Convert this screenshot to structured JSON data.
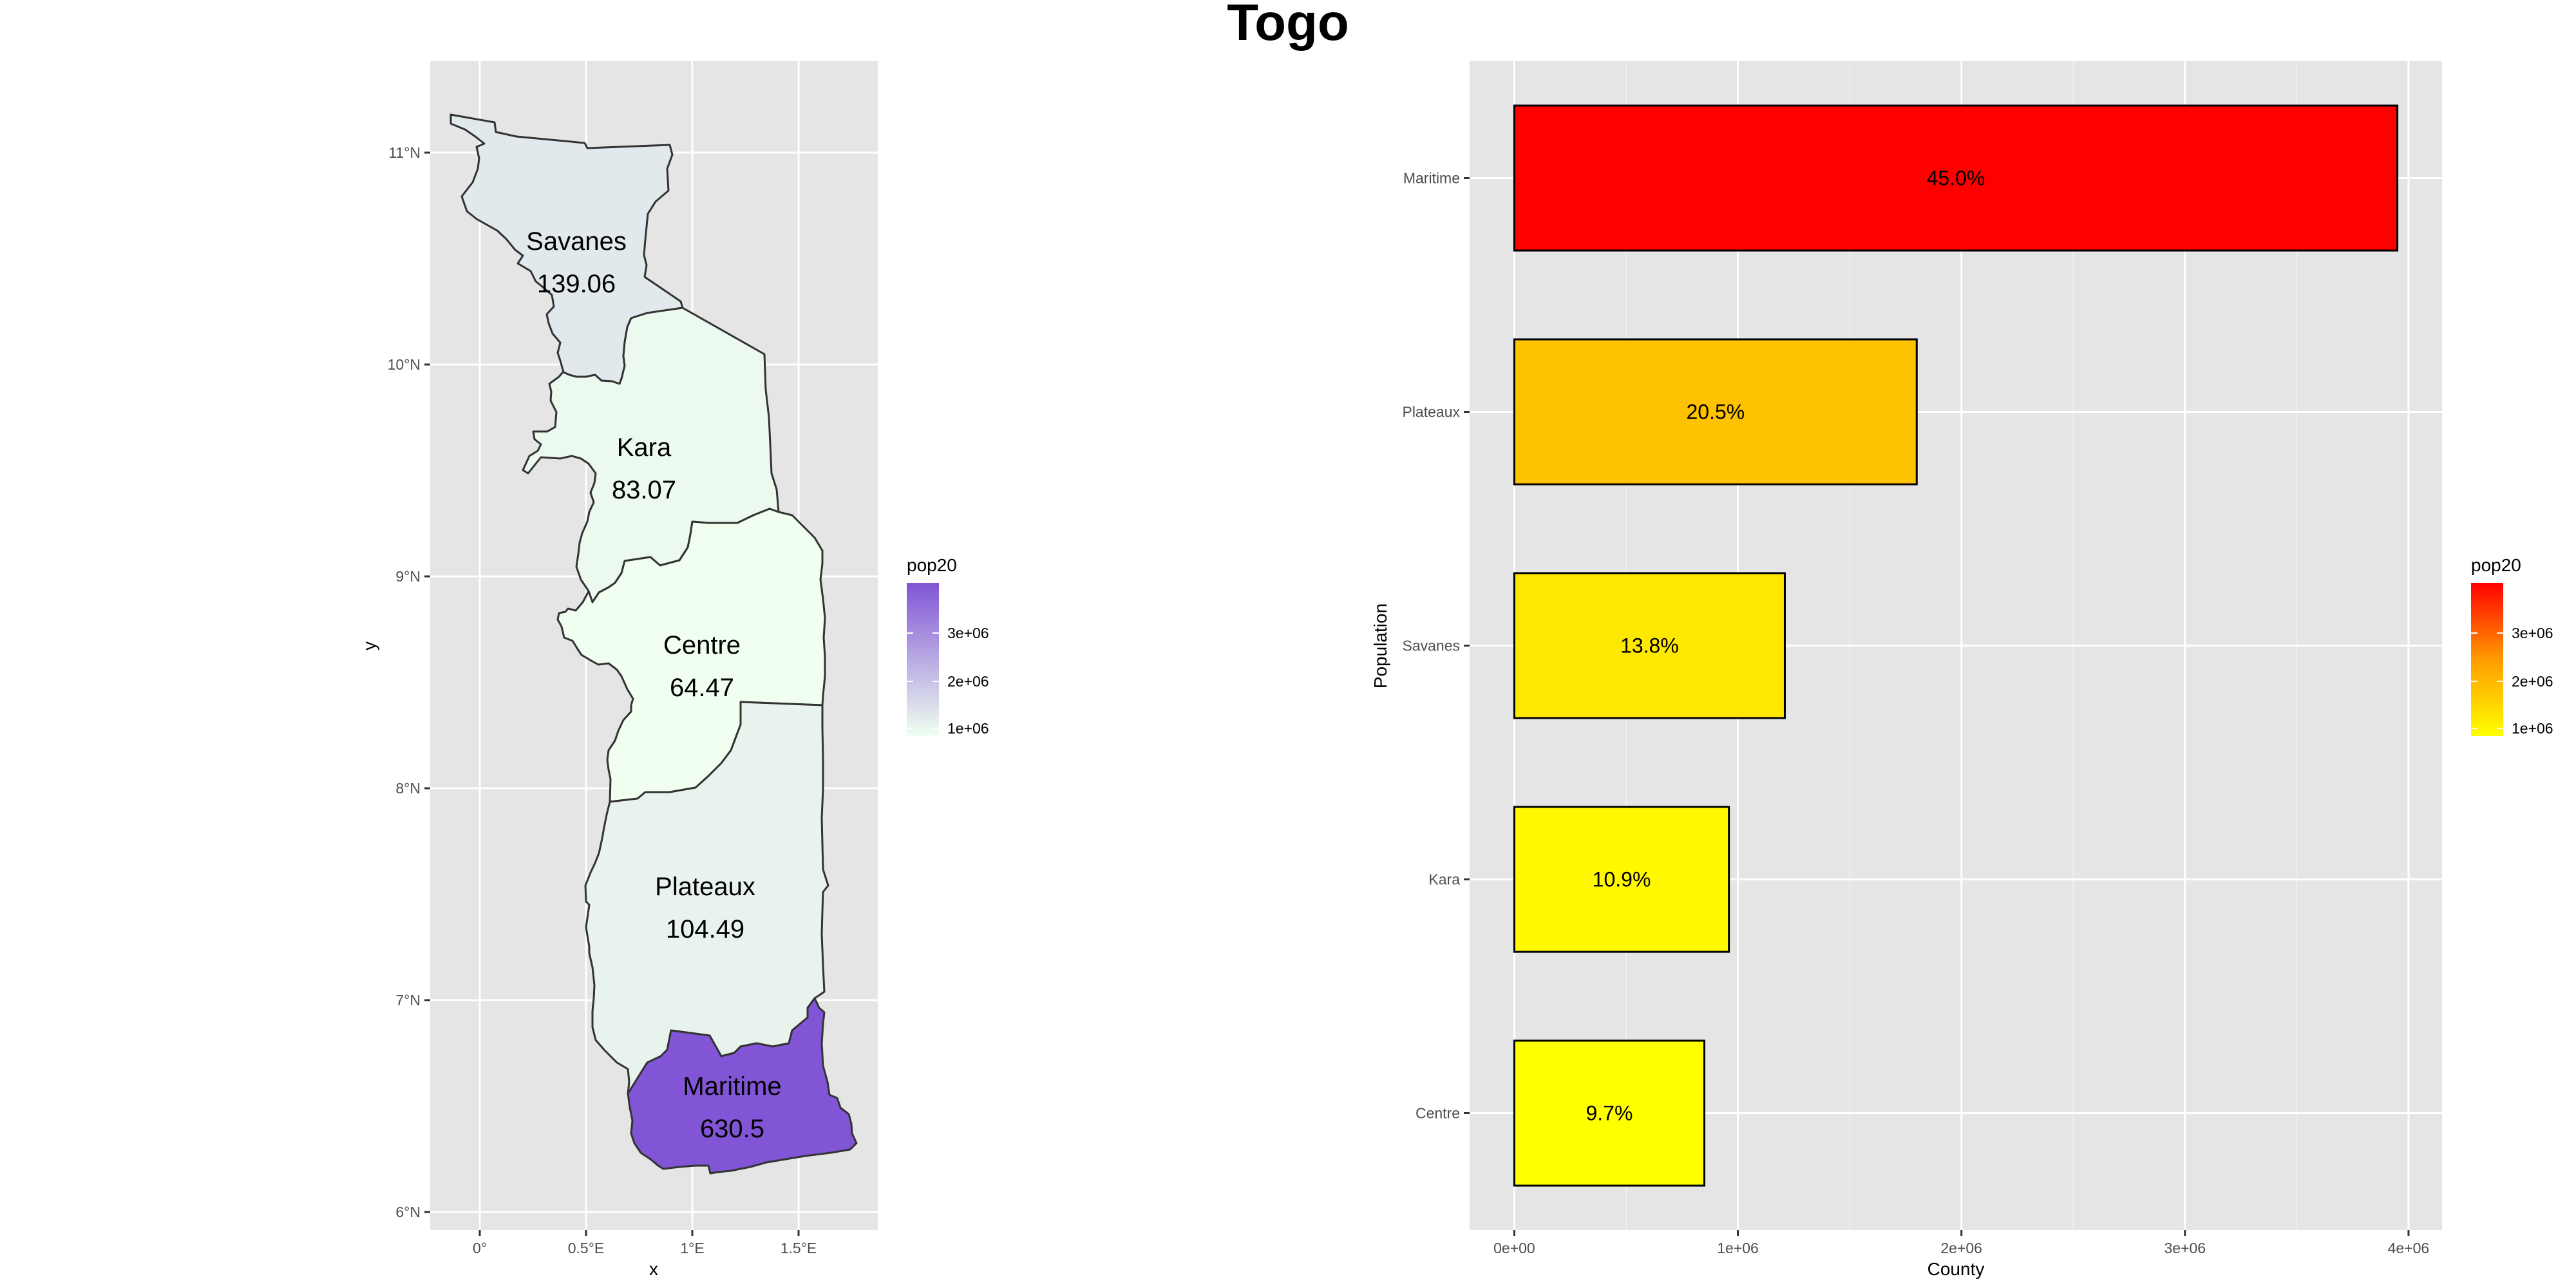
{
  "title": "Togo",
  "colors": {
    "panel_bg": "#E5E5E5",
    "grid": "#FFFFFF",
    "outline": "#333333",
    "map_low": "#F0FFF0",
    "map_high": "#8155D6",
    "bar_low": "#FFFF00",
    "bar_high": "#FF0000",
    "bar_border": "#000000"
  },
  "chart_data": [
    {
      "type": "map",
      "xlabel": "x",
      "ylabel": "y",
      "x_ticks": [
        "0°",
        "0.5°E",
        "1°E",
        "1.5°E"
      ],
      "y_ticks": [
        "6°N",
        "7°N",
        "8°N",
        "9°N",
        "10°N",
        "11°N"
      ],
      "legend": {
        "title": "pop20",
        "labels": [
          "3e+06",
          "2e+06",
          "1e+06"
        ],
        "placement": "right"
      },
      "regions": [
        {
          "name": "Savanes",
          "label": "139.06",
          "density": 139.06,
          "pop20": 1210000
        },
        {
          "name": "Kara",
          "label": "83.07",
          "density": 83.07,
          "pop20": 960000
        },
        {
          "name": "Centre",
          "label": "64.47",
          "density": 64.47,
          "pop20": 850000
        },
        {
          "name": "Plateaux",
          "label": "104.49",
          "density": 104.49,
          "pop20": 1800000
        },
        {
          "name": "Maritime",
          "label": "630.5",
          "density": 630.5,
          "pop20": 3950000
        }
      ]
    },
    {
      "type": "bar",
      "orientation": "horizontal",
      "xlabel": "County",
      "ylabel": "Population",
      "categories": [
        "Maritime",
        "Plateaux",
        "Savanes",
        "Kara",
        "Centre"
      ],
      "values": [
        3950000,
        1800000,
        1210000,
        960000,
        850000
      ],
      "labels": [
        "45.0%",
        "20.5%",
        "13.8%",
        "10.9%",
        "9.7%"
      ],
      "xlim": [
        -200000,
        4150000
      ],
      "x_ticks": [
        {
          "value": 0,
          "label": "0e+00"
        },
        {
          "value": 1000000,
          "label": "1e+06"
        },
        {
          "value": 2000000,
          "label": "2e+06"
        },
        {
          "value": 3000000,
          "label": "3e+06"
        },
        {
          "value": 4000000,
          "label": "4e+06"
        }
      ],
      "legend": {
        "title": "pop20",
        "labels": [
          "3e+06",
          "2e+06",
          "1e+06"
        ],
        "placement": "right"
      },
      "grid": true
    }
  ]
}
